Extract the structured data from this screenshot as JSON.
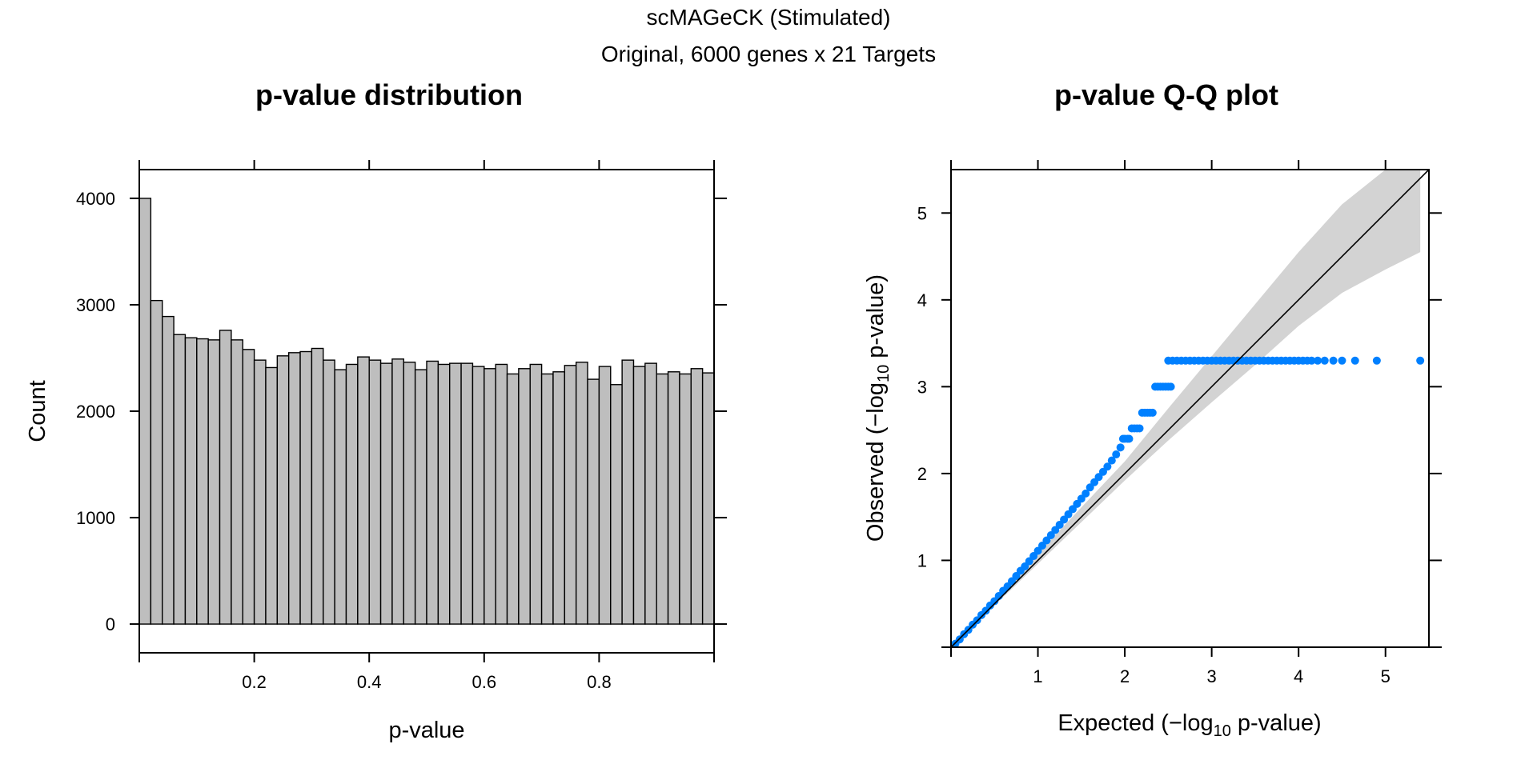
{
  "figure": {
    "title": "scMAGeCK (Stimulated)",
    "subtitle": "Original, 6000 genes x 21 Targets"
  },
  "chart_data": [
    {
      "type": "bar",
      "title": "p-value distribution",
      "xlabel": "p-value",
      "ylabel": "Count",
      "xlim": [
        0,
        1
      ],
      "ylim": [
        -270,
        4270
      ],
      "xticks": [
        "0.2",
        "0.4",
        "0.6",
        "0.8"
      ],
      "yticks": [
        "0",
        "1000",
        "2000",
        "3000",
        "4000"
      ],
      "bin_width": 0.02,
      "bin_start": 0,
      "bar_color": "#bebebe",
      "values": [
        4000,
        3040,
        2890,
        2720,
        2690,
        2680,
        2670,
        2760,
        2670,
        2580,
        2480,
        2410,
        2520,
        2550,
        2560,
        2590,
        2480,
        2390,
        2440,
        2510,
        2480,
        2450,
        2490,
        2460,
        2390,
        2470,
        2440,
        2450,
        2450,
        2420,
        2400,
        2440,
        2350,
        2400,
        2440,
        2350,
        2370,
        2430,
        2460,
        2300,
        2420,
        2250,
        2480,
        2420,
        2450,
        2350,
        2370,
        2350,
        2400,
        2360,
        2460
      ]
    },
    {
      "type": "scatter",
      "title": "p-value Q-Q plot",
      "xlabel": {
        "pre": "Expected (",
        "minus": "−",
        "log": "log",
        "sub": "10",
        "post": " p-value)"
      },
      "ylabel": {
        "pre": "Observed (",
        "minus": "−",
        "log": "log",
        "sub": "10",
        "post": " p-value)"
      },
      "xlim": [
        0,
        5.5
      ],
      "ylim": [
        0,
        5.5
      ],
      "xticks": [
        "1",
        "2",
        "3",
        "4",
        "5"
      ],
      "yticks": [
        "1",
        "2",
        "3",
        "4",
        "5"
      ],
      "point_color": "#0080ff",
      "band_color": "#d3d3d3",
      "reference_line": {
        "from": [
          0,
          0
        ],
        "to": [
          5.5,
          5.5
        ]
      },
      "confidence_band": {
        "x": [
          0,
          1.0,
          2.0,
          2.5,
          3.0,
          3.5,
          4.0,
          4.5,
          5.0,
          5.4
        ],
        "upper": [
          0.03,
          1.08,
          2.14,
          2.75,
          3.35,
          3.95,
          4.55,
          5.1,
          5.5,
          5.5
        ],
        "lower": [
          0,
          0.96,
          1.92,
          2.38,
          2.82,
          3.25,
          3.7,
          4.08,
          4.35,
          4.55
        ]
      },
      "points": [
        [
          0.05,
          0.04
        ],
        [
          0.1,
          0.09
        ],
        [
          0.15,
          0.15
        ],
        [
          0.2,
          0.2
        ],
        [
          0.25,
          0.26
        ],
        [
          0.3,
          0.31
        ],
        [
          0.35,
          0.37
        ],
        [
          0.4,
          0.42
        ],
        [
          0.45,
          0.48
        ],
        [
          0.5,
          0.53
        ],
        [
          0.55,
          0.59
        ],
        [
          0.6,
          0.65
        ],
        [
          0.65,
          0.7
        ],
        [
          0.7,
          0.76
        ],
        [
          0.75,
          0.82
        ],
        [
          0.8,
          0.88
        ],
        [
          0.85,
          0.93
        ],
        [
          0.9,
          0.99
        ],
        [
          0.95,
          1.05
        ],
        [
          1.0,
          1.11
        ],
        [
          1.05,
          1.17
        ],
        [
          1.1,
          1.23
        ],
        [
          1.15,
          1.29
        ],
        [
          1.2,
          1.35
        ],
        [
          1.25,
          1.41
        ],
        [
          1.3,
          1.47
        ],
        [
          1.35,
          1.53
        ],
        [
          1.4,
          1.59
        ],
        [
          1.45,
          1.65
        ],
        [
          1.5,
          1.71
        ],
        [
          1.55,
          1.77
        ],
        [
          1.6,
          1.84
        ],
        [
          1.65,
          1.9
        ],
        [
          1.7,
          1.96
        ],
        [
          1.75,
          2.02
        ],
        [
          1.8,
          2.08
        ],
        [
          1.85,
          2.15
        ],
        [
          1.9,
          2.22
        ],
        [
          1.95,
          2.3
        ],
        [
          1.98,
          2.4
        ],
        [
          2.0,
          2.4
        ],
        [
          2.03,
          2.4
        ],
        [
          2.05,
          2.4
        ],
        [
          2.08,
          2.52
        ],
        [
          2.11,
          2.52
        ],
        [
          2.14,
          2.52
        ],
        [
          2.17,
          2.52
        ],
        [
          2.2,
          2.7
        ],
        [
          2.23,
          2.7
        ],
        [
          2.26,
          2.7
        ],
        [
          2.29,
          2.7
        ],
        [
          2.32,
          2.7
        ],
        [
          2.35,
          3.0
        ],
        [
          2.38,
          3.0
        ],
        [
          2.41,
          3.0
        ],
        [
          2.44,
          3.0
        ],
        [
          2.47,
          3.0
        ],
        [
          2.5,
          3.0
        ],
        [
          2.53,
          3.0
        ],
        [
          2.5,
          3.3
        ],
        [
          2.55,
          3.3
        ],
        [
          2.6,
          3.3
        ],
        [
          2.65,
          3.3
        ],
        [
          2.7,
          3.3
        ],
        [
          2.75,
          3.3
        ],
        [
          2.8,
          3.3
        ],
        [
          2.85,
          3.3
        ],
        [
          2.9,
          3.3
        ],
        [
          2.95,
          3.3
        ],
        [
          3.0,
          3.3
        ],
        [
          3.05,
          3.3
        ],
        [
          3.1,
          3.3
        ],
        [
          3.15,
          3.3
        ],
        [
          3.2,
          3.3
        ],
        [
          3.25,
          3.3
        ],
        [
          3.3,
          3.3
        ],
        [
          3.35,
          3.3
        ],
        [
          3.4,
          3.3
        ],
        [
          3.45,
          3.3
        ],
        [
          3.5,
          3.3
        ],
        [
          3.55,
          3.3
        ],
        [
          3.6,
          3.3
        ],
        [
          3.65,
          3.3
        ],
        [
          3.7,
          3.3
        ],
        [
          3.75,
          3.3
        ],
        [
          3.8,
          3.3
        ],
        [
          3.85,
          3.3
        ],
        [
          3.9,
          3.3
        ],
        [
          3.95,
          3.3
        ],
        [
          4.0,
          3.3
        ],
        [
          4.05,
          3.3
        ],
        [
          4.1,
          3.3
        ],
        [
          4.15,
          3.3
        ],
        [
          4.22,
          3.3
        ],
        [
          4.3,
          3.3
        ],
        [
          4.4,
          3.3
        ],
        [
          4.5,
          3.3
        ],
        [
          4.65,
          3.3
        ],
        [
          4.9,
          3.3
        ],
        [
          5.4,
          3.3
        ]
      ]
    }
  ]
}
